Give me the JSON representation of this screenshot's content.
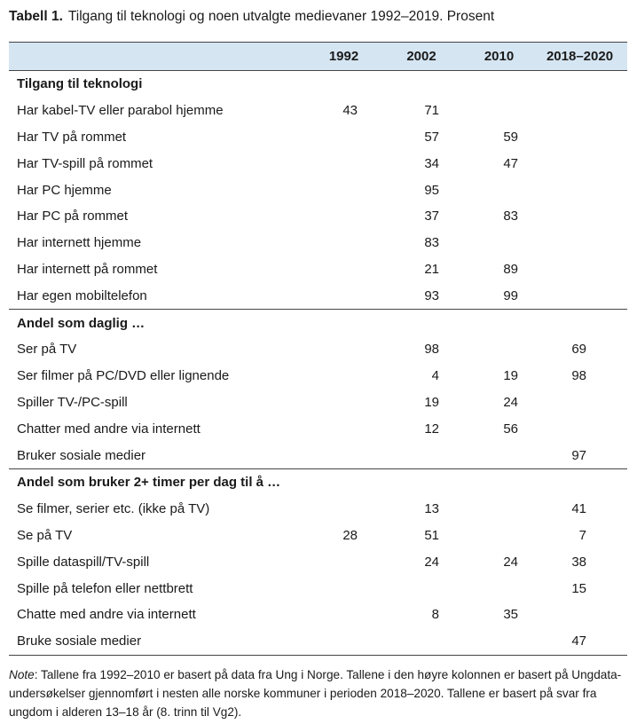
{
  "title": {
    "label": "Tabell 1.",
    "text": "Tilgang til teknologi og noen utvalgte medievaner 1992–2019. Prosent"
  },
  "table": {
    "headers": [
      "",
      "1992",
      "2002",
      "2010",
      "2018–2020"
    ],
    "sections": [
      {
        "title": "Tilgang til teknologi",
        "rows": [
          {
            "label": "Har kabel-TV eller parabol hjemme",
            "v1992": "43",
            "v2002": "71",
            "v2010": "",
            "v2018": ""
          },
          {
            "label": "Har TV på rommet",
            "v1992": "",
            "v2002": "57",
            "v2010": "59",
            "v2018": ""
          },
          {
            "label": "Har TV-spill på rommet",
            "v1992": "",
            "v2002": "34",
            "v2010": "47",
            "v2018": ""
          },
          {
            "label": "Har PC hjemme",
            "v1992": "",
            "v2002": "95",
            "v2010": "",
            "v2018": ""
          },
          {
            "label": "Har PC på rommet",
            "v1992": "",
            "v2002": "37",
            "v2010": "83",
            "v2018": ""
          },
          {
            "label": "Har internett hjemme",
            "v1992": "",
            "v2002": "83",
            "v2010": "",
            "v2018": ""
          },
          {
            "label": "Har internett på rommet",
            "v1992": "",
            "v2002": "21",
            "v2010": "89",
            "v2018": ""
          },
          {
            "label": "Har egen mobiltelefon",
            "v1992": "",
            "v2002": "93",
            "v2010": "99",
            "v2018": ""
          }
        ]
      },
      {
        "title": "Andel som daglig …",
        "rows": [
          {
            "label": "Ser på TV",
            "v1992": "",
            "v2002": "98",
            "v2010": "",
            "v2018": "69"
          },
          {
            "label": "Ser filmer på PC/DVD eller lignende",
            "v1992": "",
            "v2002": "4",
            "v2010": "19",
            "v2018": "98"
          },
          {
            "label": "Spiller TV-/PC-spill",
            "v1992": "",
            "v2002": "19",
            "v2010": "24",
            "v2018": ""
          },
          {
            "label": "Chatter med andre via internett",
            "v1992": "",
            "v2002": "12",
            "v2010": "56",
            "v2018": ""
          },
          {
            "label": "Bruker sosiale medier",
            "v1992": "",
            "v2002": "",
            "v2010": "",
            "v2018": "97"
          }
        ]
      },
      {
        "title": "Andel som bruker 2+ timer per dag til å …",
        "rows": [
          {
            "label": "Se filmer, serier etc. (ikke på TV)",
            "v1992": "",
            "v2002": "13",
            "v2010": "",
            "v2018": "41"
          },
          {
            "label": "Se på TV",
            "v1992": "28",
            "v2002": "51",
            "v2010": "",
            "v2018": "7"
          },
          {
            "label": "Spille dataspill/TV-spill",
            "v1992": "",
            "v2002": "24",
            "v2010": "24",
            "v2018": "38"
          },
          {
            "label": "Spille på telefon eller nettbrett",
            "v1992": "",
            "v2002": "",
            "v2010": "",
            "v2018": "15"
          },
          {
            "label": "Chatte med andre via internett",
            "v1992": "",
            "v2002": "8",
            "v2010": "35",
            "v2018": ""
          },
          {
            "label": "Bruke sosiale medier",
            "v1992": "",
            "v2002": "",
            "v2010": "",
            "v2018": "47"
          }
        ]
      }
    ]
  },
  "note": {
    "label": "Note",
    "text": ": Tallene fra 1992–2010 er basert på data fra Ung i Norge. Tallene i den høyre kolonnen er basert på Ungdata-undersøkelser gjennomført i nesten alle norske kommuner i perioden 2018–2020. Tallene er basert på svar fra ungdom i alderen 13–18 år (8. trinn til Vg2)."
  }
}
